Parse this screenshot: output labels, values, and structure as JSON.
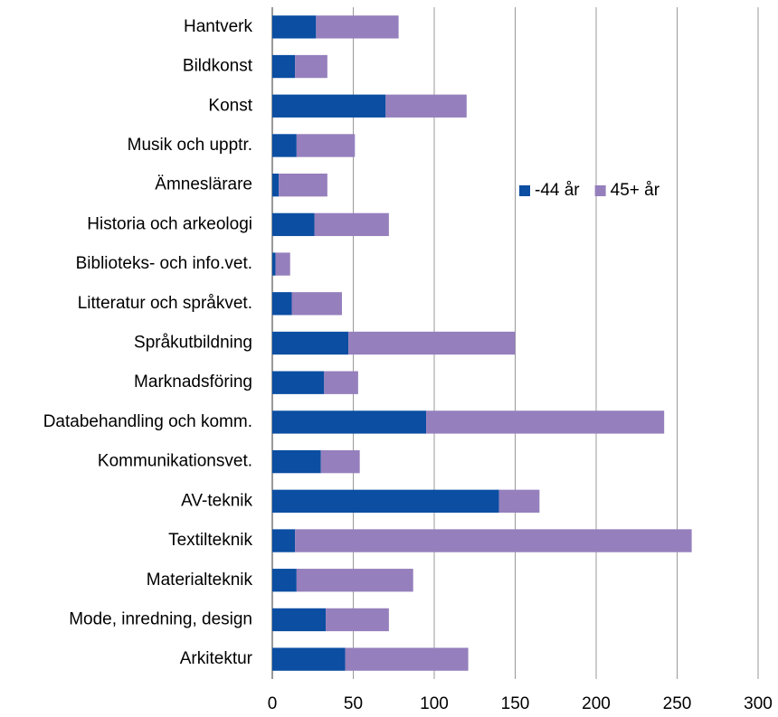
{
  "chart_data": {
    "type": "stacked-bar-horizontal",
    "categories": [
      "Hantverk",
      "Bildkonst",
      "Konst",
      "Musik och upptr.",
      "Ämneslärare",
      "Historia och arkeologi",
      "Biblioteks- och info.vet.",
      "Litteratur och språkvet.",
      "Språkutbildning",
      "Marknadsföring",
      "Databehandling och komm.",
      "Kommunikationsvet.",
      "AV-teknik",
      "Textilteknik",
      "Materialteknik",
      "Mode, inredning, design",
      "Arkitektur"
    ],
    "series": [
      {
        "name": "-44 år",
        "color": "#0b4ea2",
        "values": [
          27,
          14,
          70,
          15,
          4,
          26,
          2,
          12,
          47,
          32,
          95,
          30,
          140,
          14,
          15,
          33,
          45
        ]
      },
      {
        "name": "45+ år",
        "color": "#957fbc",
        "values": [
          51,
          20,
          50,
          36,
          30,
          46,
          9,
          31,
          103,
          21,
          147,
          24,
          25,
          245,
          72,
          39,
          76
        ]
      }
    ],
    "xlim": [
      0,
      300
    ],
    "xticks": [
      0,
      50,
      100,
      150,
      200,
      250,
      300
    ],
    "grid": true,
    "legend": "right"
  }
}
